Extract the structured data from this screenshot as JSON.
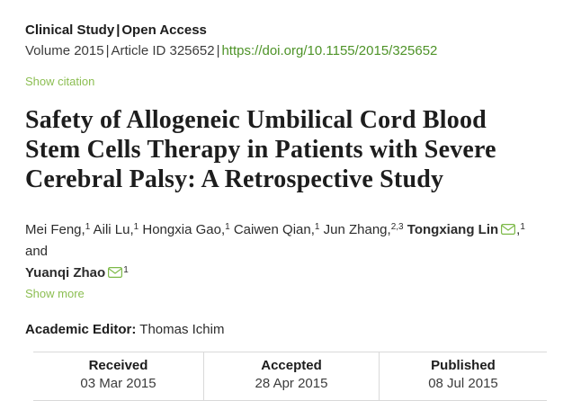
{
  "header": {
    "category": "Clinical Study",
    "separator": "|",
    "access_type": "Open Access",
    "volume": "Volume 2015",
    "article_id": "Article ID 325652",
    "doi_url": "https://doi.org/10.1155/2015/325652",
    "show_citation_label": "Show citation"
  },
  "article": {
    "title_lines": [
      "Safety of Allogeneic Umbilical Cord Blood",
      "Stem Cells Therapy in Patients with Severe",
      "Cerebral Palsy: A Retrospective Study"
    ],
    "title_full": "Safety of Allogeneic Umbilical Cord Blood Stem Cells Therapy in Patients with Severe Cerebral Palsy: A Retrospective Study",
    "authors": [
      {
        "name": "Mei Feng",
        "bold": false,
        "email": false,
        "punct": ",",
        "sup": "1",
        "after": " ",
        "break_after": false
      },
      {
        "name": "Aili Lu",
        "bold": false,
        "email": false,
        "punct": ",",
        "sup": "1",
        "after": " ",
        "break_after": false
      },
      {
        "name": "Hongxia Gao",
        "bold": false,
        "email": false,
        "punct": ",",
        "sup": "1",
        "after": " ",
        "break_after": false
      },
      {
        "name": "Caiwen Qian",
        "bold": false,
        "email": false,
        "punct": ",",
        "sup": "1",
        "after": " ",
        "break_after": false
      },
      {
        "name": "Jun Zhang",
        "bold": false,
        "email": false,
        "punct": ",",
        "sup": "2,3",
        "after": " ",
        "break_after": false
      },
      {
        "name": "Tongxiang Lin",
        "bold": true,
        "email": true,
        "punct": ",",
        "sup": "1",
        "after": " and",
        "break_after": true
      },
      {
        "name": "Yuanqi Zhao",
        "bold": true,
        "email": true,
        "punct": "",
        "sup": "1",
        "after": "",
        "break_after": false
      }
    ],
    "show_more_label": "Show more",
    "academic_editor_label": "Academic Editor:",
    "academic_editor_name": "Thomas Ichim"
  },
  "dates_table": {
    "columns": [
      {
        "label": "Received",
        "value": "03 Mar 2015"
      },
      {
        "label": "Accepted",
        "value": "28 Apr 2015"
      },
      {
        "label": "Published",
        "value": "08 Jul 2015"
      }
    ]
  },
  "icons": {
    "envelope": "email-envelope-icon"
  },
  "colors": {
    "doi_link_green": "#4e9328",
    "action_link_green": "#8cbe52",
    "envelope_green": "#7cb947",
    "border_gray": "#d9d9d9",
    "text_dark": "#1c1c1c"
  }
}
